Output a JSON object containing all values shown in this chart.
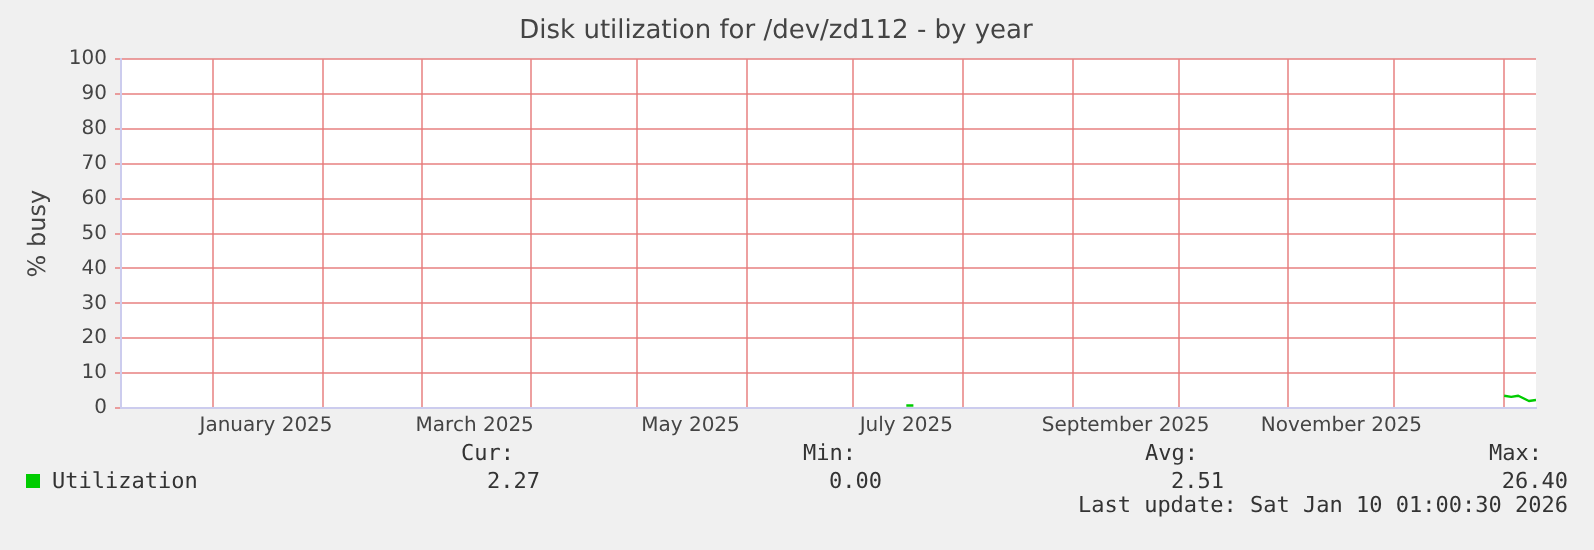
{
  "chart_data": {
    "type": "line",
    "title": "Disk utilization for /dev/zd112 - by year",
    "ylabel": "% busy",
    "x": [
      "2025-07-16",
      "2025-07-18",
      "2025-12-29",
      "2026-01-01",
      "2026-01-03",
      "2026-01-05",
      "2026-01-07",
      "2026-01-08",
      "2026-01-10"
    ],
    "series": [
      {
        "name": "Utilization",
        "color": "#00cc00",
        "values": [
          0.7,
          0.7,
          null,
          3.5,
          3.2,
          3.5,
          2.5,
          2.0,
          2.3
        ]
      }
    ],
    "xlim": [
      "2024-12-06",
      "2026-01-10"
    ],
    "xticks": [
      {
        "value": "2025-01-01",
        "label": null
      },
      {
        "value": "2025-01-16",
        "label": "January 2025"
      },
      {
        "value": "2025-02-01",
        "label": null
      },
      {
        "value": "2025-03-01",
        "label": null
      },
      {
        "value": "2025-03-16",
        "label": "March 2025"
      },
      {
        "value": "2025-04-01",
        "label": null
      },
      {
        "value": "2025-05-01",
        "label": null
      },
      {
        "value": "2025-05-16",
        "label": "May 2025"
      },
      {
        "value": "2025-06-01",
        "label": null
      },
      {
        "value": "2025-07-01",
        "label": null
      },
      {
        "value": "2025-07-16",
        "label": "July 2025"
      },
      {
        "value": "2025-08-01",
        "label": null
      },
      {
        "value": "2025-09-01",
        "label": null
      },
      {
        "value": "2025-09-16",
        "label": "September 2025"
      },
      {
        "value": "2025-10-01",
        "label": null
      },
      {
        "value": "2025-11-01",
        "label": null
      },
      {
        "value": "2025-11-16",
        "label": "November 2025"
      },
      {
        "value": "2025-12-01",
        "label": null
      },
      {
        "value": "2026-01-01",
        "label": null
      }
    ],
    "ylim": [
      0,
      100
    ],
    "yticks": [
      0,
      10,
      20,
      30,
      40,
      50,
      60,
      70,
      80,
      90,
      100
    ],
    "grid": true,
    "legend": "bottom left",
    "marker": "none",
    "line_style": "solid",
    "annotations": [
      "Cur:",
      "2.27",
      "Min:",
      "0.00",
      "Avg:",
      "2.51",
      "Max:",
      "26.40",
      "Last update: Sat Jan 10 01:00:30 2026"
    ]
  }
}
